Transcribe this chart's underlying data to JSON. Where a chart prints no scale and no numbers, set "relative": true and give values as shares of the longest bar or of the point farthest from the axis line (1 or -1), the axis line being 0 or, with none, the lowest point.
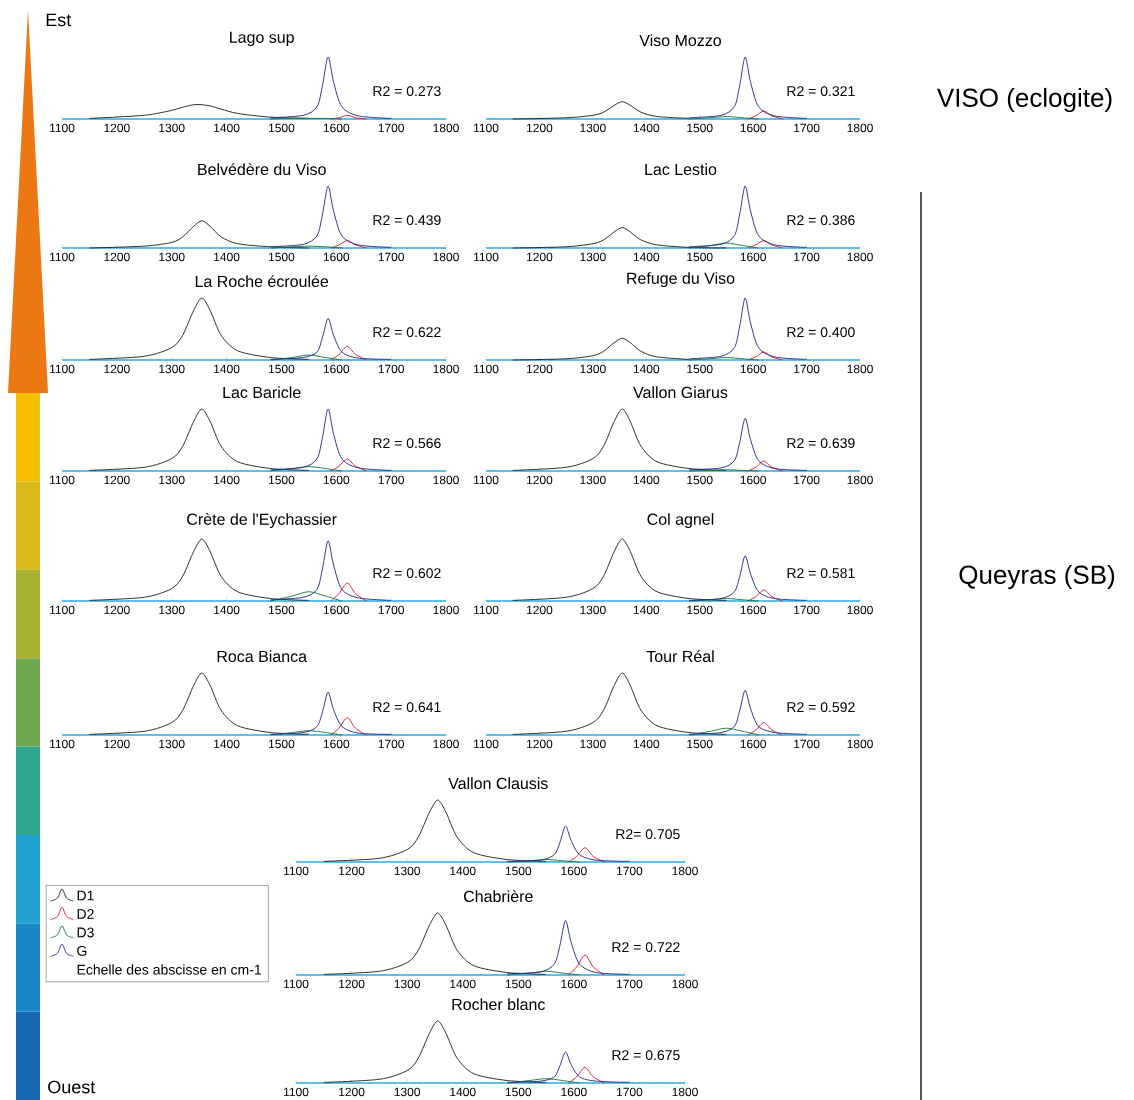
{
  "chart_data": [
    {
      "type": "line",
      "title": "Lago sup",
      "annotations": [
        "R2 = 0.273"
      ],
      "relative": true,
      "xlim": [
        1100,
        1800
      ],
      "xticks": [
        1100,
        1200,
        1300,
        1400,
        1500,
        1600,
        1700,
        1800
      ],
      "series": [
        {
          "color": "#231f20",
          "x": [
            1150,
            1250,
            1300,
            1320,
            1340,
            1355,
            1370,
            1390,
            1420,
            1480,
            1550
          ],
          "values": [
            0.01,
            0.06,
            0.14,
            0.19,
            0.23,
            0.23,
            0.21,
            0.16,
            0.09,
            0.03,
            0.01
          ]
        },
        {
          "color": "#e8112d",
          "x": [
            1590,
            1605,
            1620,
            1635,
            1655
          ],
          "values": [
            0,
            0.02,
            0.06,
            0.02,
            0
          ]
        },
        {
          "color": "#1a7a3a",
          "x": [
            1480,
            1520,
            1550,
            1580,
            1610
          ],
          "values": [
            0,
            0.01,
            0.01,
            0.01,
            0
          ]
        },
        {
          "color": "#1f2a8c",
          "x": [
            1480,
            1540,
            1565,
            1575,
            1585,
            1595,
            1610,
            1640,
            1700
          ],
          "values": [
            0.02,
            0.06,
            0.2,
            0.55,
            1,
            0.6,
            0.2,
            0.05,
            0.01
          ]
        }
      ]
    },
    {
      "type": "line",
      "title": "Viso Mozzo",
      "annotations": [
        "R2 = 0.321"
      ],
      "relative": true,
      "xlim": [
        1100,
        1800
      ],
      "xticks": [
        1100,
        1200,
        1300,
        1400,
        1500,
        1600,
        1700,
        1800
      ],
      "series": [
        {
          "color": "#231f20",
          "x": [
            1150,
            1250,
            1300,
            1320,
            1340,
            1355,
            1370,
            1390,
            1420,
            1480
          ],
          "values": [
            0,
            0.02,
            0.06,
            0.11,
            0.22,
            0.28,
            0.22,
            0.11,
            0.04,
            0.01
          ]
        },
        {
          "color": "#e8112d",
          "x": [
            1590,
            1605,
            1620,
            1635,
            1655
          ],
          "values": [
            0,
            0.05,
            0.13,
            0.05,
            0
          ]
        },
        {
          "color": "#1a7a3a",
          "x": [
            1480,
            1520,
            1550,
            1580,
            1610
          ],
          "values": [
            0,
            0.02,
            0.04,
            0.02,
            0
          ]
        },
        {
          "color": "#1f2a8c",
          "x": [
            1480,
            1540,
            1565,
            1575,
            1585,
            1595,
            1610,
            1640,
            1700
          ],
          "values": [
            0.02,
            0.06,
            0.2,
            0.55,
            1,
            0.6,
            0.2,
            0.05,
            0.01
          ]
        }
      ]
    },
    {
      "type": "line",
      "title": "Belvédère du Viso",
      "annotations": [
        "R2 = 0.439"
      ],
      "relative": true,
      "xlim": [
        1100,
        1800
      ],
      "xticks": [
        1100,
        1200,
        1300,
        1400,
        1500,
        1600,
        1700,
        1800
      ],
      "series": [
        {
          "color": "#231f20",
          "x": [
            1150,
            1250,
            1300,
            1320,
            1340,
            1355,
            1370,
            1390,
            1420,
            1480,
            1550
          ],
          "values": [
            0,
            0.03,
            0.09,
            0.18,
            0.35,
            0.44,
            0.35,
            0.18,
            0.07,
            0.02,
            0
          ]
        },
        {
          "color": "#e8112d",
          "x": [
            1590,
            1605,
            1620,
            1635,
            1655
          ],
          "values": [
            0,
            0.05,
            0.12,
            0.05,
            0
          ]
        },
        {
          "color": "#1a7a3a",
          "x": [
            1480,
            1520,
            1550,
            1580,
            1610
          ],
          "values": [
            0,
            0.02,
            0.03,
            0.02,
            0
          ]
        },
        {
          "color": "#1f2a8c",
          "x": [
            1480,
            1540,
            1565,
            1575,
            1585,
            1595,
            1610,
            1640,
            1700
          ],
          "values": [
            0.02,
            0.06,
            0.2,
            0.55,
            1,
            0.6,
            0.2,
            0.05,
            0.01
          ]
        }
      ]
    },
    {
      "type": "line",
      "title": "Lac Lestio",
      "annotations": [
        "R2 = 0.386"
      ],
      "relative": true,
      "xlim": [
        1100,
        1800
      ],
      "xticks": [
        1100,
        1200,
        1300,
        1400,
        1500,
        1600,
        1700,
        1800
      ],
      "series": [
        {
          "color": "#231f20",
          "x": [
            1150,
            1250,
            1300,
            1320,
            1340,
            1355,
            1370,
            1390,
            1420,
            1480,
            1550
          ],
          "values": [
            0,
            0.02,
            0.07,
            0.13,
            0.26,
            0.33,
            0.26,
            0.13,
            0.05,
            0.01,
            0
          ]
        },
        {
          "color": "#e8112d",
          "x": [
            1590,
            1605,
            1620,
            1635,
            1655
          ],
          "values": [
            0,
            0.05,
            0.12,
            0.05,
            0
          ]
        },
        {
          "color": "#1a7a3a",
          "x": [
            1480,
            1520,
            1550,
            1580,
            1610
          ],
          "values": [
            0,
            0.04,
            0.08,
            0.04,
            0
          ]
        },
        {
          "color": "#1f2a8c",
          "x": [
            1480,
            1540,
            1565,
            1575,
            1585,
            1595,
            1610,
            1640,
            1700
          ],
          "values": [
            0.02,
            0.06,
            0.2,
            0.55,
            1,
            0.6,
            0.2,
            0.05,
            0.01
          ]
        }
      ]
    },
    {
      "type": "line",
      "title": "La Roche écroulée",
      "annotations": [
        "R2 = 0.622"
      ],
      "relative": true,
      "xlim": [
        1100,
        1800
      ],
      "xticks": [
        1100,
        1200,
        1300,
        1400,
        1500,
        1600,
        1700,
        1800
      ],
      "series": [
        {
          "color": "#231f20",
          "x": [
            1150,
            1250,
            1300,
            1320,
            1340,
            1355,
            1370,
            1390,
            1420,
            1480,
            1550
          ],
          "values": [
            0.01,
            0.06,
            0.2,
            0.4,
            0.8,
            1,
            0.8,
            0.4,
            0.15,
            0.04,
            0.01
          ]
        },
        {
          "color": "#e8112d",
          "x": [
            1590,
            1605,
            1620,
            1635,
            1655
          ],
          "values": [
            0,
            0.09,
            0.22,
            0.09,
            0
          ]
        },
        {
          "color": "#1a7a3a",
          "x": [
            1480,
            1520,
            1550,
            1580,
            1610
          ],
          "values": [
            0,
            0.04,
            0.08,
            0.04,
            0
          ]
        },
        {
          "color": "#1f2a8c",
          "x": [
            1480,
            1540,
            1565,
            1575,
            1585,
            1595,
            1610,
            1640,
            1700
          ],
          "values": [
            0.01,
            0.04,
            0.13,
            0.37,
            0.67,
            0.4,
            0.13,
            0.03,
            0.01
          ]
        }
      ]
    },
    {
      "type": "line",
      "title": "Refuge du Viso",
      "annotations": [
        "R2 = 0.400"
      ],
      "relative": true,
      "xlim": [
        1100,
        1800
      ],
      "xticks": [
        1100,
        1200,
        1300,
        1400,
        1500,
        1600,
        1700,
        1800
      ],
      "series": [
        {
          "color": "#231f20",
          "x": [
            1150,
            1250,
            1300,
            1320,
            1340,
            1355,
            1370,
            1390,
            1420,
            1480
          ],
          "values": [
            0,
            0.02,
            0.07,
            0.14,
            0.28,
            0.35,
            0.28,
            0.14,
            0.05,
            0.01
          ]
        },
        {
          "color": "#e8112d",
          "x": [
            1590,
            1605,
            1620,
            1635,
            1655
          ],
          "values": [
            0,
            0.05,
            0.13,
            0.05,
            0
          ]
        },
        {
          "color": "#1a7a3a",
          "x": [
            1480,
            1520,
            1550,
            1580,
            1610
          ],
          "values": [
            0,
            0.02,
            0.04,
            0.02,
            0
          ]
        },
        {
          "color": "#1f2a8c",
          "x": [
            1480,
            1540,
            1565,
            1575,
            1585,
            1595,
            1610,
            1640,
            1700
          ],
          "values": [
            0.02,
            0.06,
            0.2,
            0.55,
            1,
            0.6,
            0.2,
            0.05,
            0.01
          ]
        }
      ]
    },
    {
      "type": "line",
      "title": "Lac Baricle",
      "annotations": [
        "R2 = 0.566"
      ],
      "relative": true,
      "xlim": [
        1100,
        1800
      ],
      "xticks": [
        1100,
        1200,
        1300,
        1400,
        1500,
        1600,
        1700,
        1800
      ],
      "series": [
        {
          "color": "#231f20",
          "x": [
            1150,
            1250,
            1300,
            1320,
            1340,
            1355,
            1370,
            1390,
            1420,
            1480,
            1550
          ],
          "values": [
            0.01,
            0.06,
            0.2,
            0.4,
            0.8,
            1,
            0.8,
            0.4,
            0.15,
            0.04,
            0.01
          ]
        },
        {
          "color": "#e8112d",
          "x": [
            1590,
            1605,
            1620,
            1635,
            1655
          ],
          "values": [
            0,
            0.08,
            0.19,
            0.08,
            0
          ]
        },
        {
          "color": "#1a7a3a",
          "x": [
            1480,
            1520,
            1550,
            1580,
            1610
          ],
          "values": [
            0,
            0.04,
            0.07,
            0.04,
            0
          ]
        },
        {
          "color": "#1f2a8c",
          "x": [
            1480,
            1540,
            1565,
            1575,
            1585,
            1595,
            1610,
            1640,
            1700
          ],
          "values": [
            0.02,
            0.06,
            0.2,
            0.55,
            1,
            0.6,
            0.2,
            0.05,
            0.01
          ]
        }
      ]
    },
    {
      "type": "line",
      "title": "Vallon Giarus",
      "annotations": [
        "R2 = 0.639"
      ],
      "relative": true,
      "xlim": [
        1100,
        1800
      ],
      "xticks": [
        1100,
        1200,
        1300,
        1400,
        1500,
        1600,
        1700,
        1800
      ],
      "series": [
        {
          "color": "#231f20",
          "x": [
            1150,
            1250,
            1300,
            1320,
            1340,
            1355,
            1370,
            1390,
            1420,
            1480,
            1550
          ],
          "values": [
            0.01,
            0.06,
            0.2,
            0.4,
            0.8,
            1,
            0.8,
            0.4,
            0.15,
            0.04,
            0.01
          ]
        },
        {
          "color": "#e8112d",
          "x": [
            1590,
            1605,
            1620,
            1635,
            1655
          ],
          "values": [
            0,
            0.06,
            0.16,
            0.06,
            0
          ]
        },
        {
          "color": "#1a7a3a",
          "x": [
            1480,
            1520,
            1550,
            1580,
            1610
          ],
          "values": [
            0,
            0.01,
            0.02,
            0.01,
            0
          ]
        },
        {
          "color": "#1f2a8c",
          "x": [
            1480,
            1540,
            1565,
            1575,
            1585,
            1595,
            1610,
            1640,
            1700
          ],
          "values": [
            0.02,
            0.05,
            0.17,
            0.47,
            0.85,
            0.51,
            0.17,
            0.04,
            0.01
          ]
        }
      ]
    },
    {
      "type": "line",
      "title": "Crète de l'Eychassier",
      "annotations": [
        "R2 = 0.602"
      ],
      "relative": true,
      "xlim": [
        1100,
        1800
      ],
      "xticks": [
        1100,
        1200,
        1300,
        1400,
        1500,
        1600,
        1700,
        1800
      ],
      "series": [
        {
          "color": "#231f20",
          "x": [
            1150,
            1250,
            1300,
            1320,
            1340,
            1355,
            1370,
            1390,
            1420,
            1480,
            1550
          ],
          "values": [
            0.01,
            0.06,
            0.2,
            0.4,
            0.8,
            1,
            0.8,
            0.4,
            0.15,
            0.04,
            0.01
          ]
        },
        {
          "color": "#e8112d",
          "x": [
            1590,
            1605,
            1620,
            1635,
            1655
          ],
          "values": [
            0,
            0.12,
            0.29,
            0.12,
            0
          ]
        },
        {
          "color": "#1a7a3a",
          "x": [
            1480,
            1520,
            1550,
            1580,
            1610
          ],
          "values": [
            0,
            0.08,
            0.15,
            0.08,
            0
          ]
        },
        {
          "color": "#1f2a8c",
          "x": [
            1480,
            1540,
            1565,
            1575,
            1585,
            1595,
            1610,
            1640,
            1700
          ],
          "values": [
            0.02,
            0.06,
            0.19,
            0.53,
            0.97,
            0.58,
            0.19,
            0.05,
            0.01
          ]
        }
      ]
    },
    {
      "type": "line",
      "title": "Col agnel",
      "annotations": [
        "R2 = 0.581"
      ],
      "relative": true,
      "xlim": [
        1100,
        1800
      ],
      "xticks": [
        1100,
        1200,
        1300,
        1400,
        1500,
        1600,
        1700,
        1800
      ],
      "series": [
        {
          "color": "#231f20",
          "x": [
            1150,
            1250,
            1300,
            1320,
            1340,
            1355,
            1370,
            1390,
            1420,
            1480,
            1550
          ],
          "values": [
            0.01,
            0.06,
            0.2,
            0.4,
            0.8,
            1,
            0.8,
            0.4,
            0.15,
            0.04,
            0.01
          ]
        },
        {
          "color": "#e8112d",
          "x": [
            1590,
            1605,
            1620,
            1635,
            1655
          ],
          "values": [
            0,
            0.07,
            0.18,
            0.07,
            0
          ]
        },
        {
          "color": "#1a7a3a",
          "x": [
            1480,
            1520,
            1550,
            1580,
            1610
          ],
          "values": [
            0,
            0.02,
            0.04,
            0.02,
            0
          ]
        },
        {
          "color": "#1f2a8c",
          "x": [
            1480,
            1540,
            1565,
            1575,
            1585,
            1595,
            1610,
            1640,
            1700
          ],
          "values": [
            0.01,
            0.04,
            0.15,
            0.4,
            0.73,
            0.44,
            0.15,
            0.04,
            0.01
          ]
        }
      ]
    },
    {
      "type": "line",
      "title": "Roca Bianca",
      "annotations": [
        "R2 = 0.641"
      ],
      "relative": true,
      "xlim": [
        1100,
        1800
      ],
      "xticks": [
        1100,
        1200,
        1300,
        1400,
        1500,
        1600,
        1700,
        1800
      ],
      "series": [
        {
          "color": "#231f20",
          "x": [
            1150,
            1250,
            1300,
            1320,
            1340,
            1355,
            1370,
            1390,
            1420,
            1480,
            1550
          ],
          "values": [
            0.01,
            0.06,
            0.2,
            0.4,
            0.8,
            1,
            0.8,
            0.4,
            0.15,
            0.04,
            0.01
          ]
        },
        {
          "color": "#e8112d",
          "x": [
            1590,
            1605,
            1620,
            1635,
            1655
          ],
          "values": [
            0,
            0.11,
            0.28,
            0.11,
            0
          ]
        },
        {
          "color": "#1a7a3a",
          "x": [
            1480,
            1520,
            1550,
            1580,
            1610
          ],
          "values": [
            0,
            0.04,
            0.07,
            0.04,
            0
          ]
        },
        {
          "color": "#1f2a8c",
          "x": [
            1480,
            1540,
            1565,
            1575,
            1585,
            1595,
            1610,
            1640,
            1700
          ],
          "values": [
            0.01,
            0.04,
            0.14,
            0.38,
            0.69,
            0.41,
            0.14,
            0.03,
            0.01
          ]
        }
      ]
    },
    {
      "type": "line",
      "title": "Tour Réal",
      "annotations": [
        "R2 = 0.592"
      ],
      "relative": true,
      "xlim": [
        1100,
        1800
      ],
      "xticks": [
        1100,
        1200,
        1300,
        1400,
        1500,
        1600,
        1700,
        1800
      ],
      "series": [
        {
          "color": "#231f20",
          "x": [
            1150,
            1250,
            1300,
            1320,
            1340,
            1355,
            1370,
            1390,
            1420,
            1480,
            1550
          ],
          "values": [
            0.01,
            0.06,
            0.2,
            0.4,
            0.8,
            1,
            0.8,
            0.4,
            0.15,
            0.04,
            0.01
          ]
        },
        {
          "color": "#e8112d",
          "x": [
            1590,
            1605,
            1620,
            1635,
            1655
          ],
          "values": [
            0,
            0.08,
            0.2,
            0.08,
            0
          ]
        },
        {
          "color": "#1a7a3a",
          "x": [
            1480,
            1520,
            1550,
            1580,
            1610
          ],
          "values": [
            0,
            0.06,
            0.11,
            0.06,
            0
          ]
        },
        {
          "color": "#1f2a8c",
          "x": [
            1480,
            1540,
            1565,
            1575,
            1585,
            1595,
            1610,
            1640,
            1700
          ],
          "values": [
            0.01,
            0.04,
            0.14,
            0.4,
            0.72,
            0.43,
            0.14,
            0.04,
            0.01
          ]
        }
      ]
    },
    {
      "type": "line",
      "title": "Vallon Clausis",
      "annotations": [
        "R2= 0.705"
      ],
      "relative": true,
      "xlim": [
        1100,
        1800
      ],
      "xticks": [
        1100,
        1200,
        1300,
        1400,
        1500,
        1600,
        1700,
        1800
      ],
      "series": [
        {
          "color": "#231f20",
          "x": [
            1150,
            1250,
            1300,
            1320,
            1340,
            1355,
            1370,
            1390,
            1420,
            1480,
            1550
          ],
          "values": [
            0.01,
            0.06,
            0.2,
            0.4,
            0.8,
            1,
            0.8,
            0.4,
            0.15,
            0.04,
            0.01
          ]
        },
        {
          "color": "#e8112d",
          "x": [
            1590,
            1605,
            1620,
            1635,
            1655
          ],
          "values": [
            0,
            0.09,
            0.23,
            0.09,
            0
          ]
        },
        {
          "color": "#1a7a3a",
          "x": [
            1480,
            1520,
            1550,
            1580,
            1610
          ],
          "values": [
            0,
            0.02,
            0.04,
            0.02,
            0
          ]
        },
        {
          "color": "#1f2a8c",
          "x": [
            1480,
            1540,
            1565,
            1575,
            1585,
            1595,
            1610,
            1640,
            1700
          ],
          "values": [
            0.01,
            0.03,
            0.12,
            0.32,
            0.58,
            0.35,
            0.12,
            0.03,
            0.01
          ]
        }
      ]
    },
    {
      "type": "line",
      "title": "Chabrière",
      "annotations": [
        "R2 = 0.722"
      ],
      "legend": "left",
      "legend_title": "Echelle des abscisse en cm-1",
      "relative": true,
      "xlim": [
        1100,
        1800
      ],
      "xticks": [
        1100,
        1200,
        1300,
        1400,
        1500,
        1600,
        1700,
        1800
      ],
      "series": [
        {
          "name": "D1",
          "color": "#231f20",
          "x": [
            1150,
            1250,
            1300,
            1320,
            1340,
            1355,
            1370,
            1390,
            1420,
            1480,
            1550
          ],
          "values": [
            0.01,
            0.06,
            0.2,
            0.4,
            0.8,
            1,
            0.8,
            0.4,
            0.15,
            0.04,
            0.01
          ]
        },
        {
          "name": "D2",
          "color": "#e8112d",
          "x": [
            1590,
            1605,
            1620,
            1635,
            1655
          ],
          "values": [
            0,
            0.13,
            0.32,
            0.13,
            0
          ]
        },
        {
          "name": "D3",
          "color": "#1a7a3a",
          "x": [
            1480,
            1520,
            1550,
            1580,
            1610
          ],
          "values": [
            0,
            0.03,
            0.06,
            0.03,
            0
          ]
        },
        {
          "name": "G",
          "color": "#1f2a8c",
          "x": [
            1480,
            1540,
            1565,
            1575,
            1585,
            1595,
            1610,
            1640,
            1700
          ],
          "values": [
            0.02,
            0.05,
            0.18,
            0.48,
            0.88,
            0.53,
            0.18,
            0.04,
            0.01
          ]
        }
      ]
    },
    {
      "type": "line",
      "title": "Rocher blanc",
      "annotations": [
        "R2 = 0.675"
      ],
      "relative": true,
      "xlim": [
        1100,
        1800
      ],
      "xticks": [
        1100,
        1200,
        1300,
        1400,
        1500,
        1600,
        1700,
        1800
      ],
      "series": [
        {
          "color": "#231f20",
          "x": [
            1150,
            1250,
            1300,
            1320,
            1340,
            1355,
            1370,
            1390,
            1420,
            1480,
            1550
          ],
          "values": [
            0.01,
            0.06,
            0.2,
            0.4,
            0.8,
            1,
            0.8,
            0.4,
            0.15,
            0.04,
            0.01
          ]
        },
        {
          "color": "#e8112d",
          "x": [
            1590,
            1605,
            1620,
            1635,
            1655
          ],
          "values": [
            0,
            0.1,
            0.25,
            0.1,
            0
          ]
        },
        {
          "color": "#1a7a3a",
          "x": [
            1480,
            1520,
            1550,
            1580,
            1610
          ],
          "values": [
            0,
            0.04,
            0.07,
            0.04,
            0
          ]
        },
        {
          "color": "#1f2a8c",
          "x": [
            1480,
            1540,
            1565,
            1575,
            1585,
            1595,
            1610,
            1640,
            1700
          ],
          "values": [
            0.01,
            0.03,
            0.1,
            0.28,
            0.5,
            0.3,
            0.1,
            0.03,
            0.01
          ]
        }
      ]
    },
    {
      "type": "other",
      "annotations": [
        "Est",
        "Ouest",
        "VISO (eclogite)",
        "Queyras (SB)"
      ]
    }
  ]
}
